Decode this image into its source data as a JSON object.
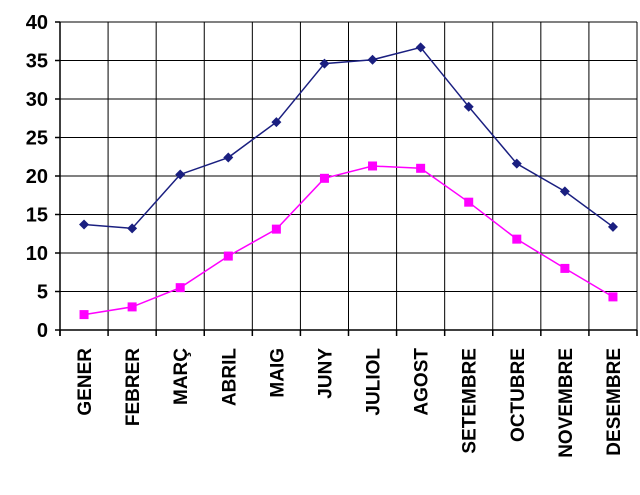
{
  "chart_data": {
    "type": "line",
    "title": "",
    "xlabel": "",
    "ylabel": "",
    "categories": [
      "GENER",
      "FEBRER",
      "MARÇ",
      "ABRIL",
      "MAIG",
      "JUNY",
      "JULIOL",
      "AGOST",
      "SETEMBRE",
      "OCTUBRE",
      "NOVEMBRE",
      "DESEMBRE"
    ],
    "ylim": [
      0,
      40
    ],
    "yticks": [
      0,
      5,
      10,
      15,
      20,
      25,
      30,
      35,
      40
    ],
    "grid": true,
    "legend": "none",
    "series": [
      {
        "color": "#1a1f80",
        "marker": "diamond",
        "values": [
          13.7,
          13.2,
          20.2,
          22.4,
          27.0,
          34.6,
          35.1,
          36.7,
          29.0,
          21.6,
          18.0,
          13.4
        ]
      },
      {
        "color": "#ff00ff",
        "marker": "square",
        "values": [
          2.0,
          3.0,
          5.5,
          9.6,
          13.1,
          19.7,
          21.3,
          21.0,
          16.6,
          11.8,
          8.0,
          4.3
        ]
      }
    ]
  }
}
